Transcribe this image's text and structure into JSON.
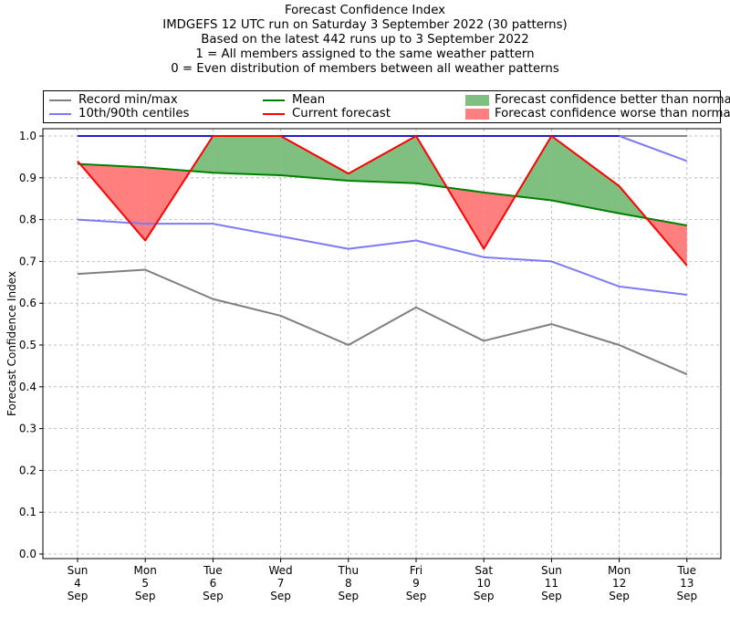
{
  "title_lines": [
    "Forecast Confidence Index",
    "IMDGEFS 12 UTC run on Saturday 3 September 2022 (30 patterns)",
    "Based on the latest 442 runs up to 3 September 2022",
    "1 = All members assigned to the same weather pattern",
    "0 = Even distribution of members between all weather patterns"
  ],
  "legend": {
    "record": "Record min/max",
    "centiles": "10th/90th centiles",
    "mean": "Mean",
    "current": "Current forecast",
    "better": "Forecast confidence better than normal",
    "worse": "Forecast confidence worse than normal"
  },
  "colors": {
    "record": "#7f7f7f",
    "record_max": "#888888",
    "centiles": "#7b7bf7",
    "centile_max": "#2020d0",
    "mean": "#008000",
    "current": "#ff0000",
    "better": "#7fbf7f",
    "worse": "#ff7f7f"
  },
  "chart_data": {
    "type": "line",
    "ylabel": "Forecast Confidence Index",
    "xlabel": "",
    "ylim": [
      0,
      1
    ],
    "yticks": [
      "0.0",
      "0.1",
      "0.2",
      "0.3",
      "0.4",
      "0.5",
      "0.6",
      "0.7",
      "0.8",
      "0.9",
      "1.0"
    ],
    "grid": true,
    "legend_position": "top",
    "categories": [
      [
        "Sun",
        "4",
        "Sep"
      ],
      [
        "Mon",
        "5",
        "Sep"
      ],
      [
        "Tue",
        "6",
        "Sep"
      ],
      [
        "Wed",
        "7",
        "Sep"
      ],
      [
        "Thu",
        "8",
        "Sep"
      ],
      [
        "Fri",
        "9",
        "Sep"
      ],
      [
        "Sat",
        "10",
        "Sep"
      ],
      [
        "Sun",
        "11",
        "Sep"
      ],
      [
        "Mon",
        "12",
        "Sep"
      ],
      [
        "Tue",
        "13",
        "Sep"
      ]
    ],
    "series": [
      {
        "name": "Record min/max",
        "key": "record_min",
        "values": [
          0.67,
          0.68,
          0.61,
          0.57,
          0.5,
          0.59,
          0.51,
          0.55,
          0.5,
          0.43
        ]
      },
      {
        "name": "Record min/max",
        "key": "record_max",
        "values": [
          1.0,
          1.0,
          1.0,
          1.0,
          1.0,
          1.0,
          1.0,
          1.0,
          1.0,
          1.0
        ]
      },
      {
        "name": "10th/90th centiles",
        "key": "p10",
        "values": [
          0.8,
          0.79,
          0.79,
          0.76,
          0.73,
          0.75,
          0.71,
          0.7,
          0.64,
          0.62
        ]
      },
      {
        "name": "10th/90th centiles",
        "key": "p90",
        "values": [
          1.0,
          1.0,
          1.0,
          1.0,
          1.0,
          1.0,
          1.0,
          1.0,
          1.0,
          0.94
        ]
      },
      {
        "name": "Mean",
        "key": "mean",
        "values": [
          0.933,
          0.925,
          0.912,
          0.906,
          0.893,
          0.887,
          0.865,
          0.846,
          0.815,
          0.786
        ]
      },
      {
        "name": "Current forecast",
        "key": "current",
        "values": [
          0.94,
          0.75,
          1.0,
          1.0,
          0.91,
          1.0,
          0.73,
          1.0,
          0.88,
          0.69
        ]
      }
    ]
  }
}
